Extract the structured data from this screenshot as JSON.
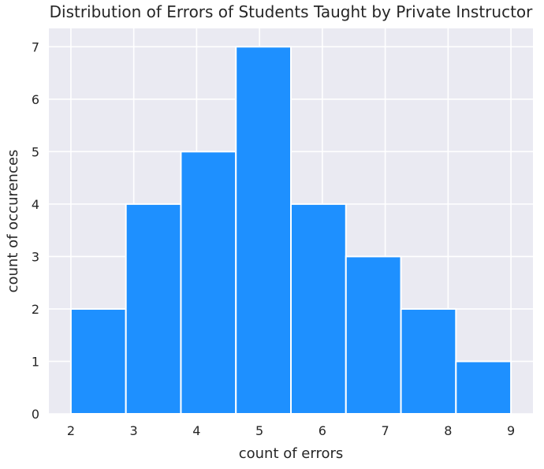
{
  "chart_data": {
    "type": "bar",
    "title": "Distribution of Errors of Students Taught by Private Instructor",
    "xlabel": "count of errors",
    "ylabel": "count of occurences",
    "bin_edges": [
      2.0,
      2.875,
      3.75,
      4.625,
      5.5,
      6.375,
      7.25,
      8.125,
      9.0
    ],
    "values": [
      2,
      4,
      5,
      7,
      4,
      3,
      2,
      1
    ],
    "xticks": [
      2,
      3,
      4,
      5,
      6,
      7,
      8,
      9
    ],
    "yticks": [
      0,
      1,
      2,
      3,
      4,
      5,
      6,
      7
    ],
    "xlim": [
      1.65,
      9.35
    ],
    "ylim": [
      0,
      7.35
    ],
    "grid": true,
    "bar_color": "#1e90ff",
    "background_color": "#eaeaf2",
    "grid_color": "#ffffff"
  }
}
